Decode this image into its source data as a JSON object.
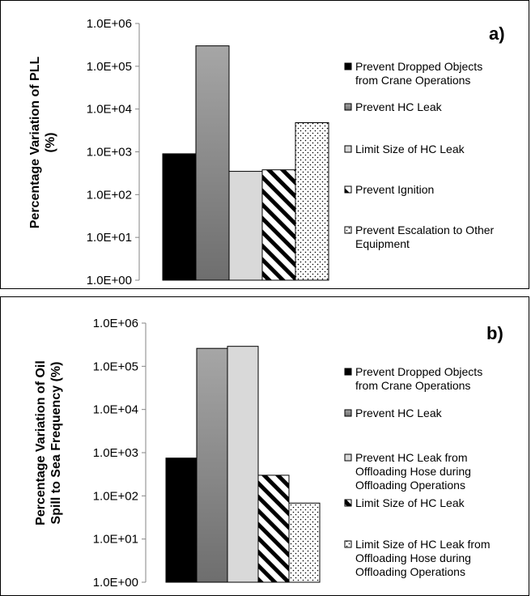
{
  "chart_data": [
    {
      "type": "bar",
      "panel": "a)",
      "ylabel_lines": [
        "Percentage Variation of PLL",
        "(%)"
      ],
      "y_scale": "log",
      "ylim": [
        1,
        1000000
      ],
      "y_ticks": [
        "1.0E+00",
        "1.0E+01",
        "1.0E+02",
        "1.0E+03",
        "1.0E+04",
        "1.0E+05",
        "1.0E+06"
      ],
      "grid": false,
      "legend_position": "right",
      "series": [
        {
          "name_lines": [
            "Prevent Dropped Objects",
            "from Crane Operations"
          ],
          "value": 900,
          "fill": "solid-black",
          "color": "#000000"
        },
        {
          "name_lines": [
            "Prevent HC Leak"
          ],
          "value": 300000,
          "fill": "gradient-gray",
          "color": "#808080"
        },
        {
          "name_lines": [
            "Limit Size of HC Leak"
          ],
          "value": 350,
          "fill": "light-gray",
          "color": "#d9d9d9"
        },
        {
          "name_lines": [
            "Prevent Ignition"
          ],
          "value": 380,
          "fill": "diagonal-stripes",
          "color": "#000000"
        },
        {
          "name_lines": [
            "Prevent Escalation to Other",
            "Equipment"
          ],
          "value": 4800,
          "fill": "dots",
          "color": "#ffffff"
        }
      ]
    },
    {
      "type": "bar",
      "panel": "b)",
      "ylabel_lines": [
        "Percentage Variation of Oil",
        "Spill to Sea Frequency (%)"
      ],
      "y_scale": "log",
      "ylim": [
        1,
        1000000
      ],
      "y_ticks": [
        "1.0E+00",
        "1.0E+01",
        "1.0E+02",
        "1.0E+03",
        "1.0E+04",
        "1.0E+05",
        "1.0E+06"
      ],
      "grid": false,
      "legend_position": "right",
      "series": [
        {
          "name_lines": [
            "Prevent Dropped Objects",
            "from Crane Operations"
          ],
          "value": 750,
          "fill": "solid-black",
          "color": "#000000"
        },
        {
          "name_lines": [
            "Prevent HC Leak"
          ],
          "value": 260000,
          "fill": "gradient-gray",
          "color": "#808080"
        },
        {
          "name_lines": [
            "Prevent HC Leak from",
            "Offloading Hose during",
            "Offloading Operations"
          ],
          "value": 290000,
          "fill": "light-gray",
          "color": "#d9d9d9"
        },
        {
          "name_lines": [
            "Limit Size of HC Leak"
          ],
          "value": 300,
          "fill": "diagonal-stripes",
          "color": "#000000"
        },
        {
          "name_lines": [
            "Limit Size of HC Leak from",
            "Offloading Hose during",
            "Offloading Operations"
          ],
          "value": 68,
          "fill": "dots",
          "color": "#ffffff"
        }
      ]
    }
  ]
}
